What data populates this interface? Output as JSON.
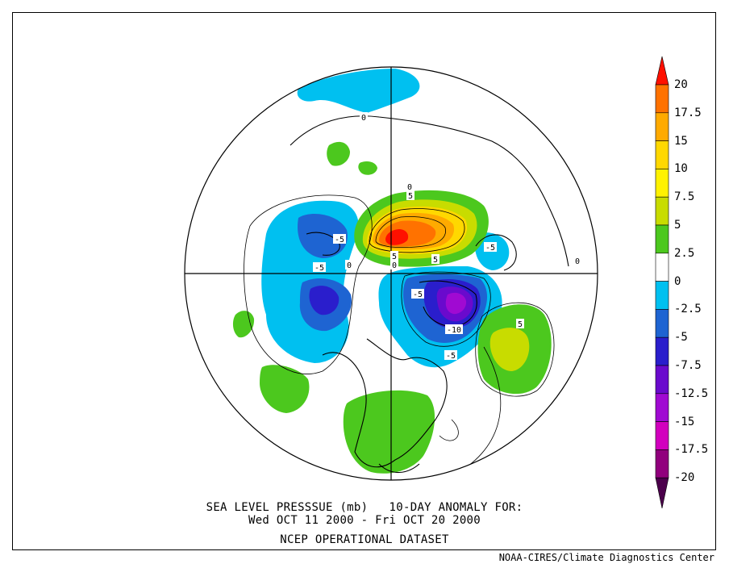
{
  "title": {
    "line1": "SEA LEVEL PRESSSUE (mb)   10-DAY ANOMALY FOR:",
    "line2": "Wed OCT 11 2000 - Fri OCT 20 2000",
    "line3": "NCEP OPERATIONAL DATASET"
  },
  "credit": "NOAA-CIRES/Climate Diagnostics Center",
  "colorbar": {
    "labels": [
      "20",
      "17.5",
      "15",
      "10",
      "7.5",
      "5",
      "2.5",
      "0",
      "-2.5",
      "-5",
      "-7.5",
      "-12.5",
      "-15",
      "-17.5",
      "-20"
    ],
    "colors": [
      "#ff1000",
      "#ff7200",
      "#ffaa00",
      "#ffd800",
      "#fff200",
      "#c8dc00",
      "#4cc81e",
      "#ffffff",
      "#00c0f0",
      "#1e64d2",
      "#2a1ecc",
      "#6a0acd",
      "#a00ad2",
      "#d200be",
      "#91007d",
      "#4b004b"
    ]
  },
  "contour_labels": [
    {
      "text": "0"
    },
    {
      "text": "0"
    },
    {
      "text": "0"
    },
    {
      "text": "0"
    },
    {
      "text": "0"
    },
    {
      "text": "5"
    },
    {
      "text": "5"
    },
    {
      "text": "5"
    },
    {
      "text": "5"
    },
    {
      "text": "-5"
    },
    {
      "text": "-5"
    },
    {
      "text": "-5"
    },
    {
      "text": "-5"
    },
    {
      "text": "-5"
    },
    {
      "text": "-10"
    }
  ]
}
